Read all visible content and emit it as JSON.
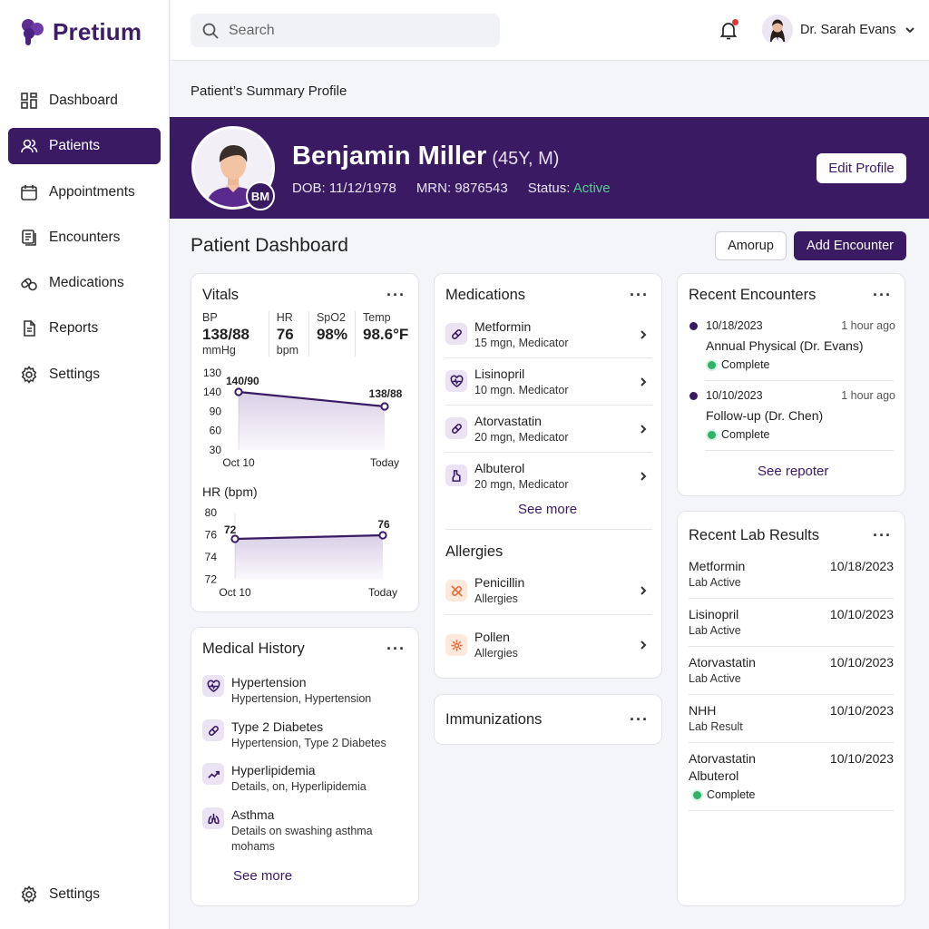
{
  "app": {
    "name": "Pretium"
  },
  "sidebar": {
    "items": [
      {
        "label": "Dashboard",
        "icon": "dashboard-icon"
      },
      {
        "label": "Patients",
        "icon": "users-icon",
        "active": true
      },
      {
        "label": "Appointments",
        "icon": "calendar-icon"
      },
      {
        "label": "Encounters",
        "icon": "encounters-icon"
      },
      {
        "label": "Medications",
        "icon": "pills-icon"
      },
      {
        "label": "Reports",
        "icon": "document-icon"
      },
      {
        "label": "Settings",
        "icon": "gear-icon"
      }
    ],
    "bottom": {
      "label": "Settings",
      "icon": "gear-icon"
    }
  },
  "topbar": {
    "search_placeholder": "Search",
    "user_name": "Dr. Sarah Evans"
  },
  "breadcrumb": "Patient’s Summary Profile",
  "patient": {
    "name": "Benjamin Miller",
    "age_sex": "(45Y, M)",
    "initials": "BM",
    "dob": "DOB: 11/12/1978",
    "mrn": "MRN: 9876543",
    "status_label": "Status:",
    "status_value": "Active",
    "edit_label": "Edit Profile"
  },
  "dashboard": {
    "title": "Patient Dashboard",
    "secondary_button": "Amorup",
    "primary_button": "Add Encounter"
  },
  "vitals": {
    "title": "Vitals",
    "items": [
      {
        "label": "BP",
        "value": "138/88",
        "unit": "mmHg"
      },
      {
        "label": "HR",
        "value": "76",
        "unit": "bpm"
      },
      {
        "label": "SpO2",
        "value": "98%",
        "unit": ""
      },
      {
        "label": "Temp",
        "value": "98.6°F",
        "unit": ""
      }
    ]
  },
  "chart_data": [
    {
      "type": "area",
      "title": "",
      "ylabels": [
        "130",
        "140",
        "90",
        "60",
        "30"
      ],
      "x": [
        "Oct 10",
        "Today"
      ],
      "points": [
        "140/90",
        "138/88"
      ],
      "values": [
        140,
        138
      ]
    },
    {
      "type": "area",
      "title": "HR (bpm)",
      "ylabels": [
        "80",
        "76",
        "74",
        "72"
      ],
      "x": [
        "Oct 10",
        "Today"
      ],
      "values": [
        72,
        76
      ],
      "ylim": [
        72,
        80
      ]
    }
  ],
  "history": {
    "title": "Medical History",
    "items": [
      {
        "title": "Hypertension",
        "sub": "Hypertension, Hypertension",
        "icon": "heartbeat-icon"
      },
      {
        "title": "Type 2 Diabetes",
        "sub": "Hypertension, Type 2 Diabetes",
        "icon": "pill-icon"
      },
      {
        "title": "Hyperlipidemia",
        "sub": "Details, on, Hyperlipidemia",
        "icon": "trend-icon"
      },
      {
        "title": "Asthma",
        "sub1": "Details on swashing asthma",
        "sub2": "mohams",
        "icon": "lungs-icon"
      }
    ],
    "see_more": "See more"
  },
  "medications": {
    "title": "Medications",
    "items": [
      {
        "name": "Metformin",
        "sub": "15 mgn, Medicator",
        "icon": "pill-icon"
      },
      {
        "name": "Lisinopril",
        "sub": "10 mgn. Medicator",
        "icon": "heartbeat-icon"
      },
      {
        "name": "Atorvastatin",
        "sub": "20 mgn, Medicator",
        "icon": "pill-icon"
      },
      {
        "name": "Albuterol",
        "sub": "20 mgn, Medicator",
        "icon": "inhaler-icon"
      }
    ],
    "see_more": "See more"
  },
  "allergies": {
    "title": "Allergies",
    "items": [
      {
        "name": "Penicillin",
        "sub": "Allergies",
        "icon": "no-pill-icon"
      },
      {
        "name": "Pollen",
        "sub": "Allergies",
        "icon": "pollen-icon"
      }
    ]
  },
  "immunizations": {
    "title": "Immunizations"
  },
  "encounters": {
    "title": "Recent Encounters",
    "items": [
      {
        "date": "10/18/2023",
        "time": "1 hour ago",
        "title": "Annual Physical (Dr. Evans)",
        "status": "Complete"
      },
      {
        "date": "10/10/2023",
        "time": "1 hour ago",
        "title": "Follow-up (Dr. Chen)",
        "status": "Complete"
      }
    ],
    "see_more": "See repoter"
  },
  "labs": {
    "title": "Recent Lab Results",
    "items": [
      {
        "name": "Metformin",
        "sub": "Lab Active",
        "date": "10/18/2023"
      },
      {
        "name": "Lisinopril",
        "sub": "Lab Active",
        "date": "10/10/2023"
      },
      {
        "name": "Atorvastatin",
        "sub": "Lab Active",
        "date": "10/10/2023"
      },
      {
        "name": "NHH",
        "sub": "Lab Result",
        "date": "10/10/2023"
      },
      {
        "name": "Atorvastatin",
        "name2": "Albuterol",
        "status": "Complete",
        "date": "10/10/2023"
      }
    ]
  },
  "colors": {
    "brand": "#3a1a63",
    "success": "#2fb36a",
    "allergy": "#e66b3b"
  }
}
